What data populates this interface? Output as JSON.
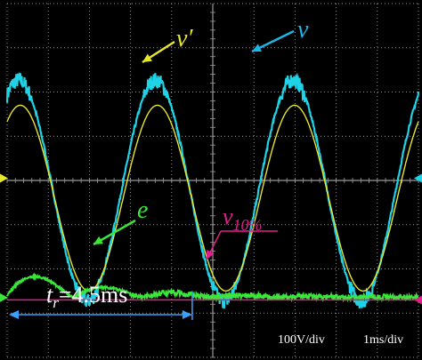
{
  "chart_data": {
    "type": "line",
    "title": "",
    "xlabel": "",
    "ylabel": "",
    "xlim": [
      0,
      10
    ],
    "ylim": [
      -4,
      4
    ],
    "grid": true,
    "x_unit_per_div": "ms",
    "y_unit_per_div": "V",
    "series": [
      {
        "name": "v",
        "color": "#1fd2e6",
        "description_values": {
          "frequency_hz": 300,
          "amplitude_div": 2.5,
          "offset_div": -0.23,
          "noise": "high-frequency ripple near peaks and troughs"
        }
      },
      {
        "name": "v′",
        "color": "#e6e62e",
        "description_values": {
          "frequency_hz": 300,
          "amplitude_div": 2.1,
          "offset_div": -0.4
        }
      },
      {
        "name": "e",
        "color": "#3ae63a",
        "description_values": {
          "frequency_hz": 300,
          "initial_amplitude_div": 0.65,
          "decay": "damped, rectified-like oscillation settling near baseline",
          "baseline_div": -2.65
        }
      },
      {
        "name": "v10%",
        "color": "#e0208a",
        "description_values": {
          "type": "horizontal reference level",
          "level_div": -2.7
        }
      }
    ],
    "annotations": {
      "v_label": "v",
      "vprime_label": "v′",
      "e_label": "e",
      "v10_label_base": "v",
      "v10_label_sub": "10%",
      "tr_label_t": "t",
      "tr_label_sub": "r",
      "tr_label_value": "=4.5ms",
      "tr_ms": 4.5,
      "volts_per_div": "100V/div",
      "time_per_div": "1ms/div"
    }
  },
  "colors": {
    "background": "#000000",
    "grid": "#9a9a9a",
    "v": "#1fd2e6",
    "v_prime": "#e6e62e",
    "e": "#3ae63a",
    "v10": "#e0208a",
    "arrow_v": "#1fb4e6",
    "arrow_vprime": "#e6e62e",
    "arrow_e": "#3ae63a",
    "arrow_v10": "#e0208a",
    "tr_line": "#3aa0ff",
    "marker_left": "#e6e62e",
    "marker_right": "#1fd2e6"
  }
}
